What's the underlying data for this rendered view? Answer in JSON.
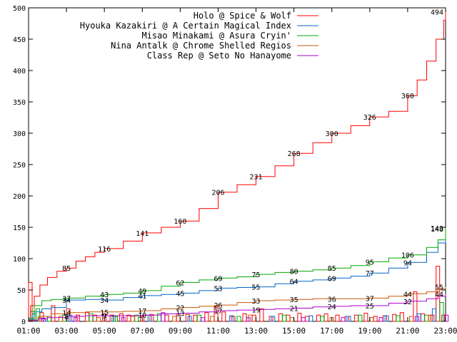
{
  "chart_data": {
    "type": "line",
    "title": "",
    "xlabel": "",
    "ylabel": "",
    "x_range_hours": [
      1,
      23
    ],
    "ylim": [
      0,
      500
    ],
    "grid": false,
    "legend_position": "top-right",
    "x_ticks": [
      "01:00",
      "03:00",
      "05:00",
      "07:00",
      "09:00",
      "11:00",
      "13:00",
      "15:00",
      "17:00",
      "19:00",
      "21:00",
      "23:00"
    ],
    "y_ticks": [
      "0",
      "50",
      "100",
      "150",
      "200",
      "250",
      "300",
      "350",
      "400",
      "450",
      "500"
    ],
    "series": [
      {
        "name": "Holo @ Spice & Wolf",
        "color": "#ff0000",
        "cumulative": [
          [
            1.0,
            5
          ],
          [
            1.1,
            25
          ],
          [
            1.3,
            40
          ],
          [
            1.6,
            58
          ],
          [
            2.0,
            70
          ],
          [
            2.5,
            80
          ],
          [
            3.0,
            85
          ],
          [
            3.5,
            96
          ],
          [
            4.0,
            103
          ],
          [
            4.5,
            110
          ],
          [
            5.0,
            116
          ],
          [
            6.0,
            128
          ],
          [
            7.0,
            141
          ],
          [
            8.0,
            150
          ],
          [
            9.0,
            160
          ],
          [
            10.0,
            180
          ],
          [
            11.0,
            206
          ],
          [
            12.0,
            218
          ],
          [
            13.0,
            231
          ],
          [
            14.0,
            248
          ],
          [
            15.0,
            268
          ],
          [
            16.0,
            285
          ],
          [
            17.0,
            300
          ],
          [
            18.0,
            312
          ],
          [
            19.0,
            326
          ],
          [
            20.0,
            335
          ],
          [
            21.0,
            360
          ],
          [
            21.5,
            385
          ],
          [
            22.0,
            415
          ],
          [
            22.5,
            450
          ],
          [
            22.9,
            480
          ],
          [
            23.0,
            494
          ]
        ],
        "labels": [
          [
            3.0,
            85
          ],
          [
            5.0,
            116
          ],
          [
            7.0,
            141
          ],
          [
            9.0,
            160
          ],
          [
            11.0,
            206
          ],
          [
            13.0,
            231
          ],
          [
            15.0,
            268
          ],
          [
            17.0,
            300
          ],
          [
            19.0,
            326
          ],
          [
            21.0,
            360
          ],
          [
            23.0,
            494
          ]
        ],
        "bars": [
          [
            1.0,
            62
          ],
          [
            1.6,
            14
          ],
          [
            2.2,
            25
          ],
          [
            3.0,
            20
          ],
          [
            3.5,
            10
          ],
          [
            4.0,
            14
          ],
          [
            4.4,
            10
          ],
          [
            4.9,
            12
          ],
          [
            5.3,
            10
          ],
          [
            5.8,
            12
          ],
          [
            6.2,
            10
          ],
          [
            6.9,
            8
          ],
          [
            7.4,
            11
          ],
          [
            8.2,
            10
          ],
          [
            8.8,
            12
          ],
          [
            9.3,
            11
          ],
          [
            9.7,
            10
          ],
          [
            10.3,
            14
          ],
          [
            10.8,
            25
          ],
          [
            11.2,
            15
          ],
          [
            11.7,
            8
          ],
          [
            12.3,
            12
          ],
          [
            12.8,
            10
          ],
          [
            13.2,
            20
          ],
          [
            13.7,
            8
          ],
          [
            14.2,
            12
          ],
          [
            14.6,
            10
          ],
          [
            15.2,
            13
          ],
          [
            15.6,
            8
          ],
          [
            16.2,
            10
          ],
          [
            16.6,
            12
          ],
          [
            17.2,
            10
          ],
          [
            17.7,
            8
          ],
          [
            18.2,
            10
          ],
          [
            18.7,
            13
          ],
          [
            19.2,
            8
          ],
          [
            19.7,
            9
          ],
          [
            20.2,
            11
          ],
          [
            20.6,
            14
          ],
          [
            21.3,
            47
          ],
          [
            21.7,
            12
          ],
          [
            22.2,
            10
          ],
          [
            22.5,
            88
          ],
          [
            22.8,
            10
          ]
        ]
      },
      {
        "name": "Hyouka Kazakiri @ A Certain Magical Index",
        "color": "#0066cc",
        "cumulative": [
          [
            1.0,
            3
          ],
          [
            1.3,
            15
          ],
          [
            1.7,
            20
          ],
          [
            2.2,
            22
          ],
          [
            3.0,
            34
          ],
          [
            4.0,
            35
          ],
          [
            5.0,
            34
          ],
          [
            6.0,
            38
          ],
          [
            7.0,
            41
          ],
          [
            8.0,
            43
          ],
          [
            9.0,
            45
          ],
          [
            10.0,
            49
          ],
          [
            11.0,
            53
          ],
          [
            12.0,
            54
          ],
          [
            13.0,
            55
          ],
          [
            14.0,
            60
          ],
          [
            15.0,
            64
          ],
          [
            16.0,
            66
          ],
          [
            17.0,
            69
          ],
          [
            18.0,
            72
          ],
          [
            19.0,
            77
          ],
          [
            20.0,
            85
          ],
          [
            21.0,
            94
          ],
          [
            22.0,
            110
          ],
          [
            22.6,
            125
          ],
          [
            23.0,
            148
          ]
        ],
        "labels": [
          [
            3.0,
            34
          ],
          [
            5.0,
            34
          ],
          [
            7.0,
            41
          ],
          [
            9.0,
            45
          ],
          [
            11.0,
            53
          ],
          [
            13.0,
            55
          ],
          [
            15.0,
            64
          ],
          [
            17.0,
            69
          ],
          [
            19.0,
            77
          ],
          [
            21.0,
            94
          ],
          [
            23.0,
            148
          ]
        ],
        "bars": [
          [
            1.2,
            12
          ],
          [
            1.8,
            8
          ],
          [
            3.1,
            10
          ],
          [
            5.4,
            8
          ],
          [
            7.3,
            10
          ],
          [
            9.4,
            8
          ],
          [
            11.6,
            9
          ],
          [
            13.8,
            8
          ],
          [
            15.8,
            9
          ],
          [
            17.8,
            8
          ],
          [
            19.8,
            9
          ],
          [
            21.5,
            12
          ],
          [
            22.3,
            20
          ]
        ]
      },
      {
        "name": "Misao Minakami @ Asura Cryin'",
        "color": "#00aa00",
        "cumulative": [
          [
            1.0,
            5
          ],
          [
            1.3,
            25
          ],
          [
            1.7,
            33
          ],
          [
            2.2,
            35
          ],
          [
            3.0,
            37
          ],
          [
            4.0,
            40
          ],
          [
            5.0,
            43
          ],
          [
            6.0,
            45
          ],
          [
            7.0,
            49
          ],
          [
            8.0,
            56
          ],
          [
            9.0,
            62
          ],
          [
            10.0,
            66
          ],
          [
            11.0,
            69
          ],
          [
            12.0,
            71
          ],
          [
            13.0,
            75
          ],
          [
            14.0,
            78
          ],
          [
            15.0,
            80
          ],
          [
            16.0,
            82
          ],
          [
            17.0,
            85
          ],
          [
            18.0,
            89
          ],
          [
            19.0,
            95
          ],
          [
            20.0,
            101
          ],
          [
            21.0,
            106
          ],
          [
            22.0,
            118
          ],
          [
            22.6,
            130
          ],
          [
            23.0,
            149
          ]
        ],
        "labels": [
          [
            3.0,
            37
          ],
          [
            5.0,
            43
          ],
          [
            7.0,
            49
          ],
          [
            9.0,
            62
          ],
          [
            11.0,
            69
          ],
          [
            13.0,
            75
          ],
          [
            15.0,
            80
          ],
          [
            17.0,
            85
          ],
          [
            19.0,
            95
          ],
          [
            21.0,
            106
          ],
          [
            23.0,
            149
          ]
        ],
        "bars": [
          [
            1.1,
            16
          ],
          [
            1.4,
            20
          ],
          [
            2.0,
            8
          ],
          [
            2.8,
            10
          ],
          [
            4.2,
            12
          ],
          [
            5.5,
            8
          ],
          [
            6.6,
            10
          ],
          [
            7.8,
            12
          ],
          [
            9.9,
            10
          ],
          [
            12.0,
            8
          ],
          [
            14.4,
            10
          ],
          [
            16.4,
            8
          ],
          [
            18.4,
            10
          ],
          [
            20.4,
            9
          ],
          [
            21.9,
            10
          ],
          [
            22.7,
            30
          ]
        ]
      },
      {
        "name": "Nina Antalk @ Chrome Shelled Regios",
        "color": "#cc5500",
        "cumulative": [
          [
            1.0,
            2
          ],
          [
            1.5,
            8
          ],
          [
            2.2,
            12
          ],
          [
            3.0,
            14
          ],
          [
            4.0,
            15
          ],
          [
            5.0,
            15
          ],
          [
            6.0,
            16
          ],
          [
            7.0,
            17
          ],
          [
            8.0,
            20
          ],
          [
            9.0,
            22
          ],
          [
            10.0,
            24
          ],
          [
            11.0,
            26
          ],
          [
            12.0,
            30
          ],
          [
            13.0,
            33
          ],
          [
            14.0,
            34
          ],
          [
            15.0,
            35
          ],
          [
            16.0,
            36
          ],
          [
            17.0,
            36
          ],
          [
            18.0,
            36
          ],
          [
            19.0,
            37
          ],
          [
            20.0,
            40
          ],
          [
            21.0,
            44
          ],
          [
            22.0,
            47
          ],
          [
            22.6,
            52
          ],
          [
            23.0,
            55
          ]
        ],
        "labels": [
          [
            3.0,
            14
          ],
          [
            5.0,
            15
          ],
          [
            7.0,
            17
          ],
          [
            9.0,
            22
          ],
          [
            11.0,
            26
          ],
          [
            13.0,
            33
          ],
          [
            15.0,
            35
          ],
          [
            17.0,
            36
          ],
          [
            19.0,
            37
          ],
          [
            21.0,
            44
          ],
          [
            23.0,
            55
          ]
        ],
        "bars": [
          [
            1.5,
            6
          ],
          [
            2.6,
            8
          ],
          [
            4.6,
            6
          ],
          [
            6.4,
            8
          ],
          [
            8.6,
            8
          ],
          [
            10.6,
            8
          ],
          [
            12.6,
            10
          ],
          [
            14.8,
            6
          ],
          [
            16.9,
            6
          ],
          [
            19.0,
            6
          ],
          [
            21.1,
            8
          ],
          [
            22.1,
            10
          ]
        ]
      },
      {
        "name": "Class Rep @ Seto No Hanayome",
        "color": "#aa00cc",
        "cumulative": [
          [
            1.0,
            1
          ],
          [
            1.5,
            4
          ],
          [
            2.0,
            6
          ],
          [
            3.0,
            8
          ],
          [
            4.0,
            9
          ],
          [
            5.0,
            9
          ],
          [
            6.0,
            9
          ],
          [
            7.0,
            10
          ],
          [
            8.0,
            12
          ],
          [
            9.0,
            13
          ],
          [
            10.0,
            15
          ],
          [
            11.0,
            17
          ],
          [
            12.0,
            18
          ],
          [
            13.0,
            19
          ],
          [
            14.0,
            20
          ],
          [
            15.0,
            21
          ],
          [
            16.0,
            23
          ],
          [
            17.0,
            24
          ],
          [
            18.0,
            25
          ],
          [
            19.0,
            25
          ],
          [
            20.0,
            29
          ],
          [
            21.0,
            32
          ],
          [
            22.0,
            36
          ],
          [
            22.6,
            40
          ],
          [
            23.0,
            44
          ]
        ],
        "labels": [
          [
            3.0,
            8
          ],
          [
            5.0,
            9
          ],
          [
            7.0,
            10
          ],
          [
            9.0,
            13
          ],
          [
            11.0,
            17
          ],
          [
            13.0,
            19
          ],
          [
            15.0,
            21
          ],
          [
            17.0,
            24
          ],
          [
            19.0,
            25
          ],
          [
            21.0,
            32
          ],
          [
            23.0,
            44
          ]
        ],
        "bars": [
          [
            1.7,
            5
          ],
          [
            3.4,
            6
          ],
          [
            5.9,
            6
          ],
          [
            8.0,
            14
          ],
          [
            10.1,
            6
          ],
          [
            12.5,
            6
          ],
          [
            15.4,
            6
          ],
          [
            17.5,
            6
          ],
          [
            19.5,
            6
          ],
          [
            21.4,
            8
          ],
          [
            22.95,
            10
          ]
        ]
      }
    ]
  }
}
